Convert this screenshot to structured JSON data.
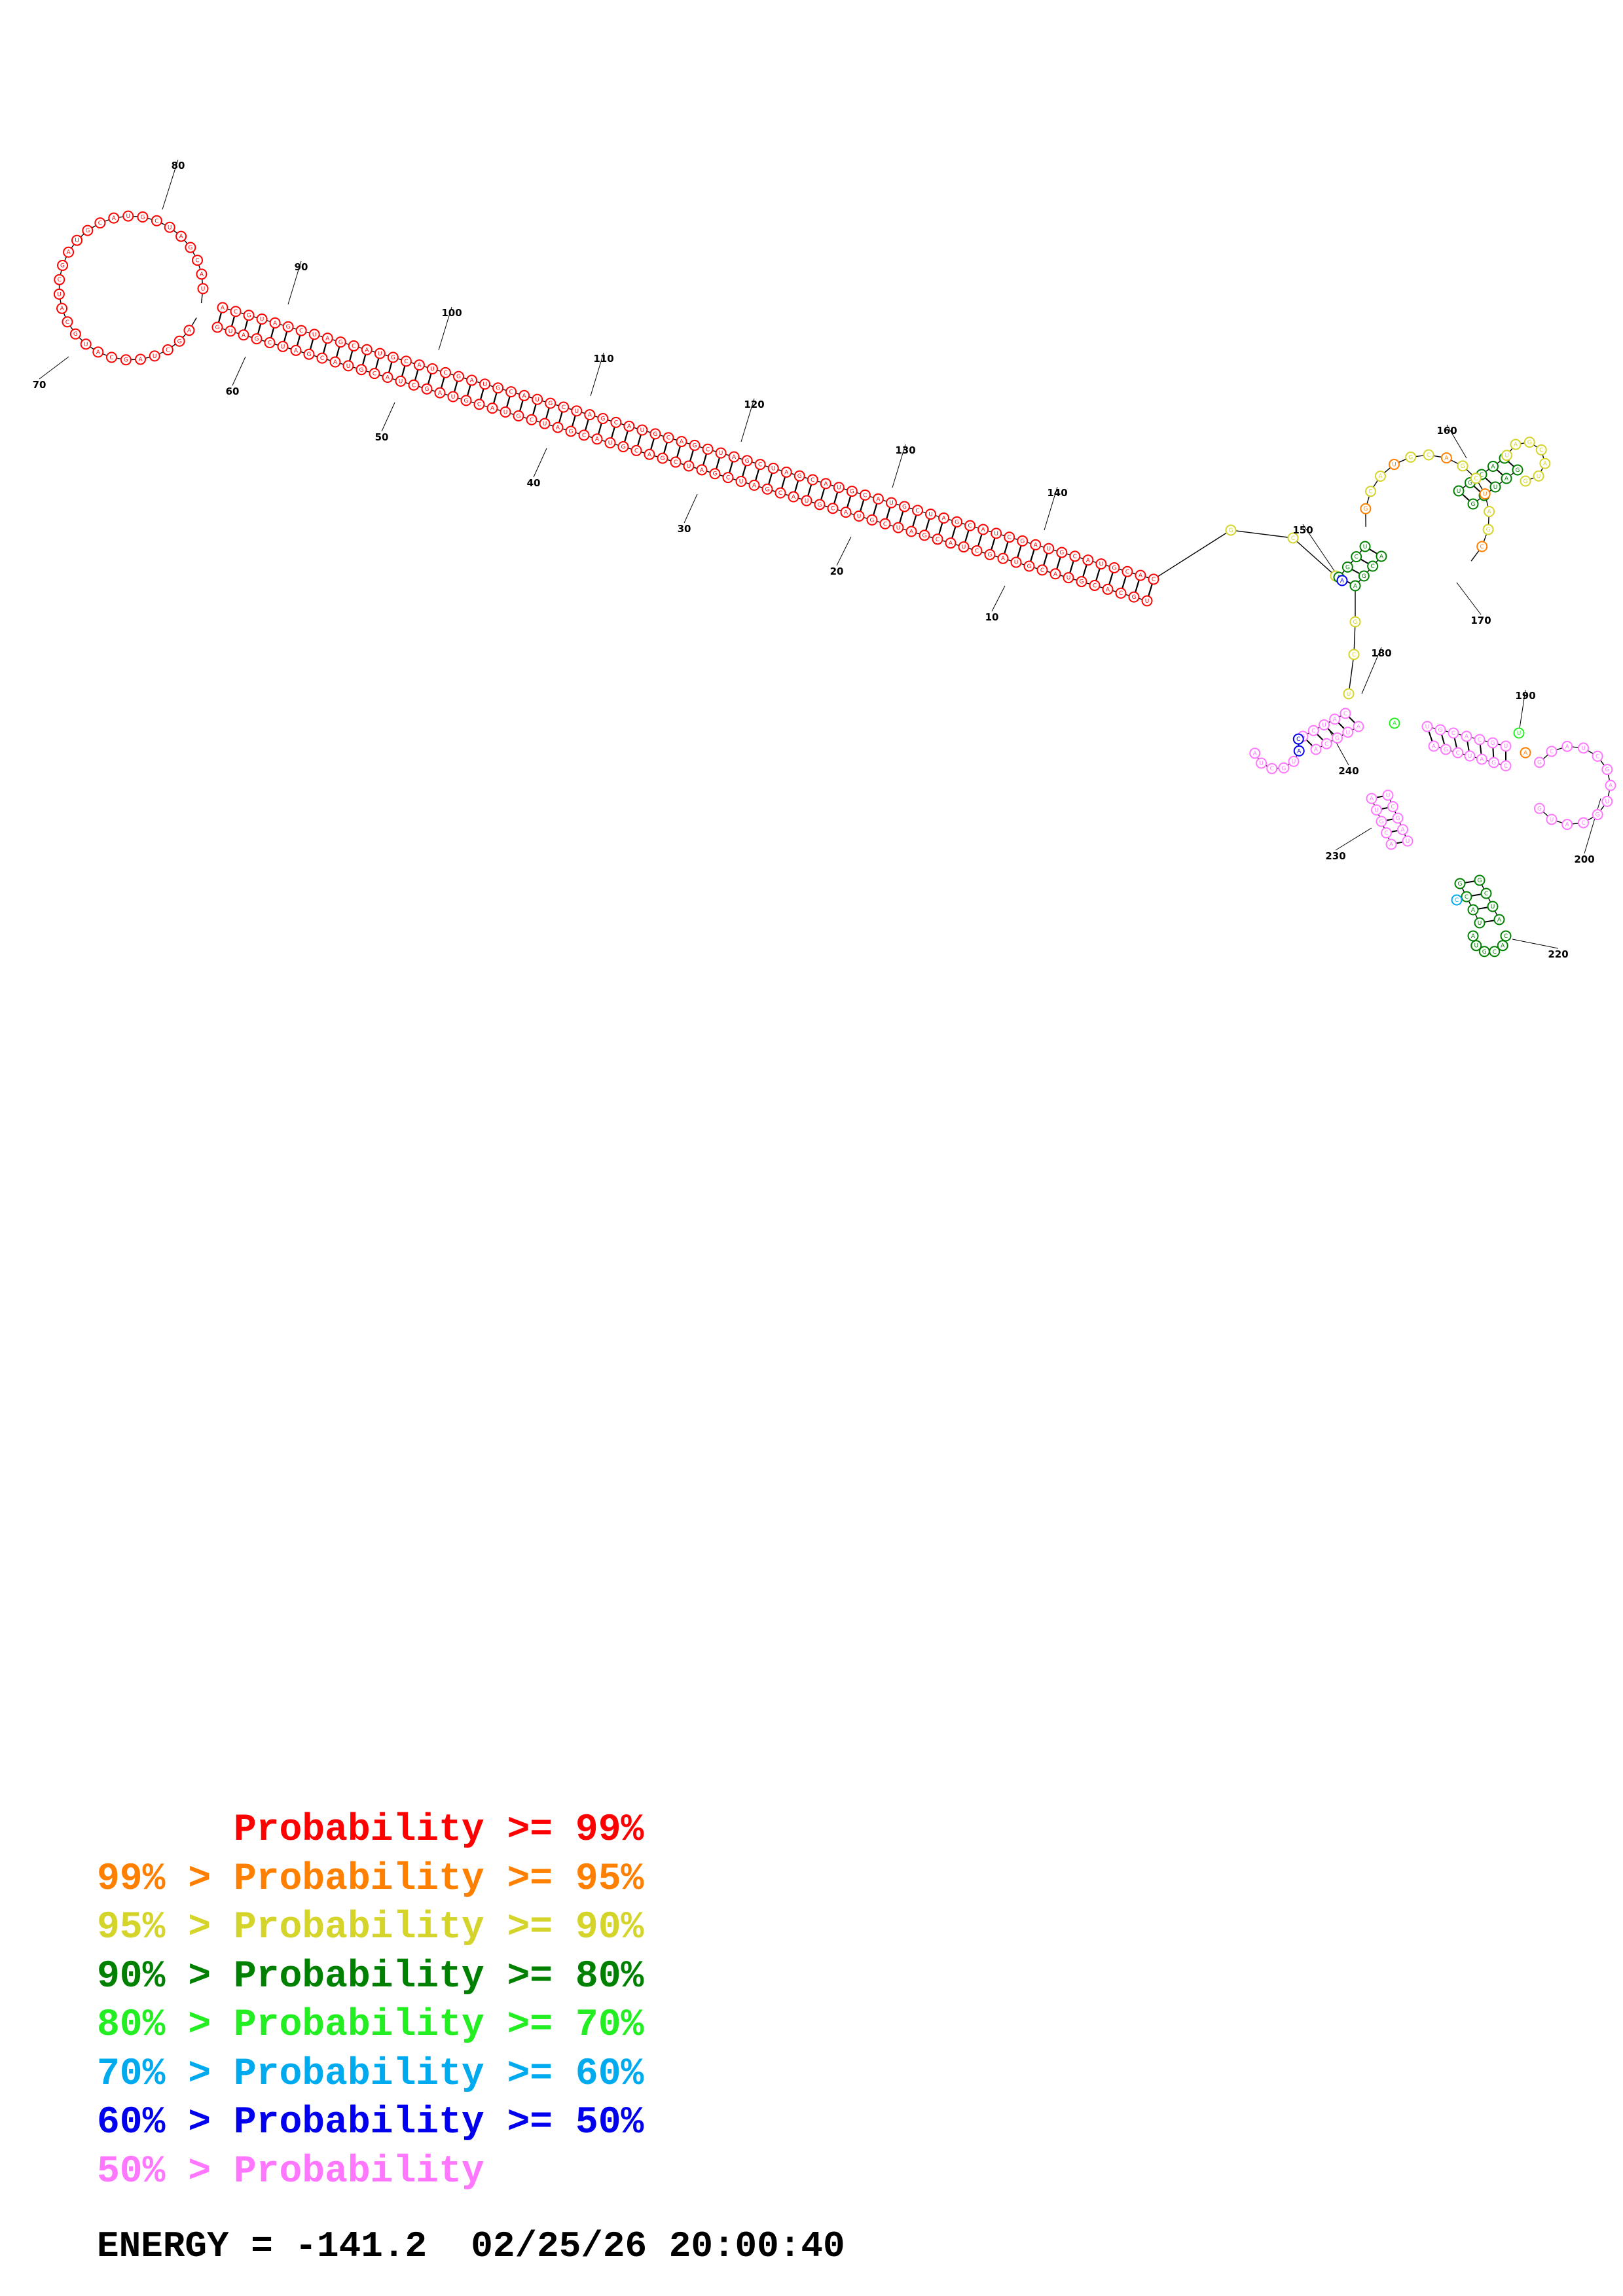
{
  "legend": [
    {
      "text": "      Probability >= 99%",
      "color": "#ff0000"
    },
    {
      "text": "99% > Probability >= 95%",
      "color": "#ff8000"
    },
    {
      "text": "95% > Probability >= 90%",
      "color": "#d4d42a"
    },
    {
      "text": "90% > Probability >= 80%",
      "color": "#008000"
    },
    {
      "text": "80% > Probability >= 70%",
      "color": "#22ee22"
    },
    {
      "text": "70% > Probability >= 60%",
      "color": "#00aaee"
    },
    {
      "text": "60% > Probability >= 50%",
      "color": "#0000ee"
    },
    {
      "text": "50% > Probability",
      "color": "#ff77ff"
    }
  ],
  "energy_line": "ENERGY = -141.2  02/25/26 20:00:40",
  "position_labels": [
    "10",
    "20",
    "30",
    "40",
    "50",
    "60",
    "70",
    "80",
    "90",
    "100",
    "110",
    "120",
    "130",
    "140",
    "150",
    "160",
    "170",
    "180",
    "190",
    "200",
    "220",
    "230",
    "240"
  ],
  "colors": {
    "red": "#ff0000",
    "orange": "#ff8000",
    "yellow": "#d4d42a",
    "dkgreen": "#008000",
    "green": "#22ee22",
    "cyan": "#00aaee",
    "blue": "#0000ee",
    "pink": "#ff77ff"
  }
}
